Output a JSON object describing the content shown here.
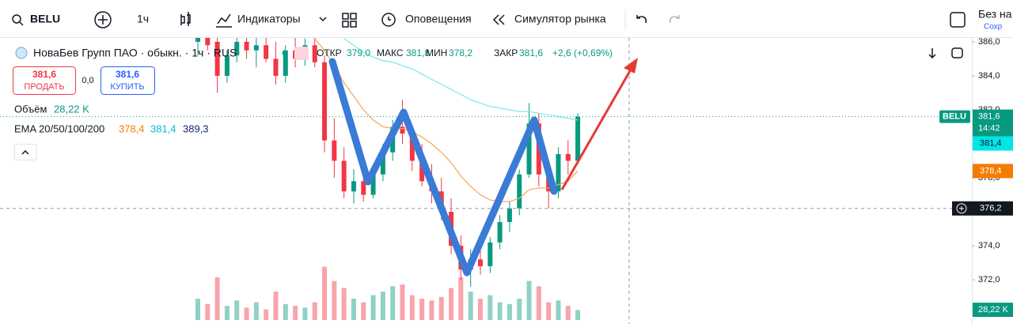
{
  "toolbar": {
    "symbol": "BELU",
    "interval": "1ч",
    "indicators": "Индикаторы",
    "alerts": "Оповещения",
    "replay": "Симулятор рынка",
    "right_text": "Без на",
    "right_sub": "Сохр"
  },
  "legend": {
    "symbol_name": "НоваБев Групп ПАО · обыкн. · 1ч · RUS",
    "open_label": "ОТКР",
    "open": "379,0",
    "high_label": "МАКС",
    "high": "381,8",
    "low_label": "МИН",
    "low": "378,2",
    "close_label": "ЗАКР",
    "close": "381,6",
    "change": "+2,6 (+0,69%)"
  },
  "trade": {
    "sell_price": "381,6",
    "sell_label": "ПРОДАТЬ",
    "spread": "0,0",
    "buy_price": "381,6",
    "buy_label": "КУПИТЬ"
  },
  "volume_legend": {
    "label": "Объём",
    "value": "28,22 K"
  },
  "ema_legend": {
    "label": "EMA 20/50/100/200",
    "values": [
      "378,4",
      "381,4",
      "389,3"
    ]
  },
  "chart_data": {
    "type": "candlestick",
    "up_color": "#089981",
    "down_color": "#f23645",
    "ylim": [
      369.4,
      386.23
    ],
    "yticks": [
      {
        "value": 386,
        "label": "386,0"
      },
      {
        "value": 384,
        "label": "384,0"
      },
      {
        "value": 382,
        "label": "382,0"
      },
      {
        "value": 380,
        "label": "380,0"
      },
      {
        "value": 378,
        "label": "378,0"
      },
      {
        "value": 376,
        "label": "376,0"
      },
      {
        "value": 374,
        "label": "374,0"
      },
      {
        "value": 372,
        "label": "372,0"
      }
    ],
    "open": [
      386.0,
      386.4,
      386,
      384,
      385.2,
      386,
      385.5,
      385.8,
      385,
      384,
      385.5,
      385,
      385.8,
      384.8,
      380.2,
      379,
      377.2,
      377.8,
      377,
      378.2,
      379.5,
      381,
      380.6,
      379,
      377.8,
      377.2,
      376,
      374,
      372.6,
      373.2,
      372.8,
      374.2,
      375.4,
      376.2,
      378.2,
      381.2,
      378.2,
      377.2,
      379.4,
      379
    ],
    "high": [
      387,
      387,
      386.8,
      385.5,
      386.5,
      387,
      386.3,
      386.5,
      386,
      385.8,
      386.5,
      386.2,
      386.4,
      385.2,
      381.5,
      379.8,
      378.5,
      378.3,
      378.6,
      380,
      381.4,
      382.6,
      381,
      380,
      378.8,
      378,
      376.8,
      374.6,
      373.8,
      374.2,
      374.5,
      375.8,
      376.6,
      378.5,
      382.4,
      381.8,
      379,
      379.8,
      380.2,
      381.8
    ],
    "low": [
      385.2,
      385.5,
      383.0,
      383.6,
      384.8,
      385,
      384.5,
      384.8,
      383.5,
      383.6,
      384.5,
      384.6,
      384.5,
      379.5,
      378.0,
      376.8,
      376.5,
      376.6,
      376.8,
      377.8,
      379,
      380,
      378.4,
      377.5,
      376.5,
      375.5,
      373.5,
      372,
      371.6,
      372.3,
      372.4,
      373.8,
      374.8,
      375.8,
      378,
      377.5,
      376.2,
      376.8,
      378.2,
      378.8
    ],
    "close": [
      386.4,
      385.8,
      384.0,
      385.2,
      386.0,
      385.5,
      385.8,
      385.0,
      384.0,
      385.5,
      385.0,
      385.8,
      384.8,
      380.2,
      379.0,
      377.2,
      377.8,
      377.0,
      378.2,
      379.5,
      381,
      380.6,
      379,
      377.8,
      377.2,
      376,
      374,
      372.6,
      373.2,
      372.8,
      374.2,
      375.4,
      376.2,
      378.2,
      381.2,
      378.2,
      377.2,
      379.4,
      379,
      381.6
    ],
    "volume": [
      60,
      45,
      120,
      40,
      55,
      35,
      50,
      30,
      80,
      45,
      40,
      35,
      50,
      150,
      110,
      90,
      60,
      50,
      70,
      80,
      95,
      100,
      70,
      60,
      55,
      65,
      90,
      120,
      80,
      60,
      70,
      50,
      45,
      60,
      110,
      95,
      50,
      55,
      40,
      28.22
    ],
    "vlim": [
      0,
      200
    ],
    "ema": [
      {
        "color": "#f7a35c",
        "values": [
          null,
          null,
          null,
          null,
          null,
          null,
          null,
          null,
          null,
          null,
          null,
          null,
          386.2,
          385.5,
          384.6,
          383.6,
          382.8,
          382.0,
          381.4,
          381.0,
          380.9,
          380.9,
          380.7,
          380.4,
          380.0,
          379.5,
          378.9,
          378.1,
          377.5,
          377.0,
          376.7,
          376.6,
          376.6,
          376.8,
          377.3,
          377.4,
          377.4,
          377.6,
          377.8,
          378.4
        ]
      },
      {
        "color": "#7ee8e8",
        "values": [
          null,
          null,
          null,
          null,
          null,
          null,
          null,
          null,
          null,
          null,
          null,
          null,
          null,
          null,
          null,
          386.2,
          385.8,
          385.4,
          385.1,
          384.9,
          384.8,
          384.6,
          384.4,
          384.1,
          383.8,
          383.5,
          383.2,
          382.9,
          382.6,
          382.4,
          382.2,
          382.1,
          382.0,
          381.9,
          381.9,
          381.8,
          381.7,
          381.6,
          381.5,
          381.4
        ]
      }
    ],
    "symbol_tag": "BELU",
    "last": {
      "value": 381.6,
      "label": "381,6"
    },
    "time": "14:42",
    "ema_tags": [
      {
        "value": 381.4,
        "label": "381,4",
        "color": "#00e5e5"
      },
      {
        "value": 378.4,
        "label": "378,4",
        "color": "#f57c00"
      }
    ],
    "crosshair": {
      "value": 376.2,
      "label": "376,2"
    },
    "volume_tag": {
      "value": 28.22,
      "label": "28,22 K"
    }
  }
}
